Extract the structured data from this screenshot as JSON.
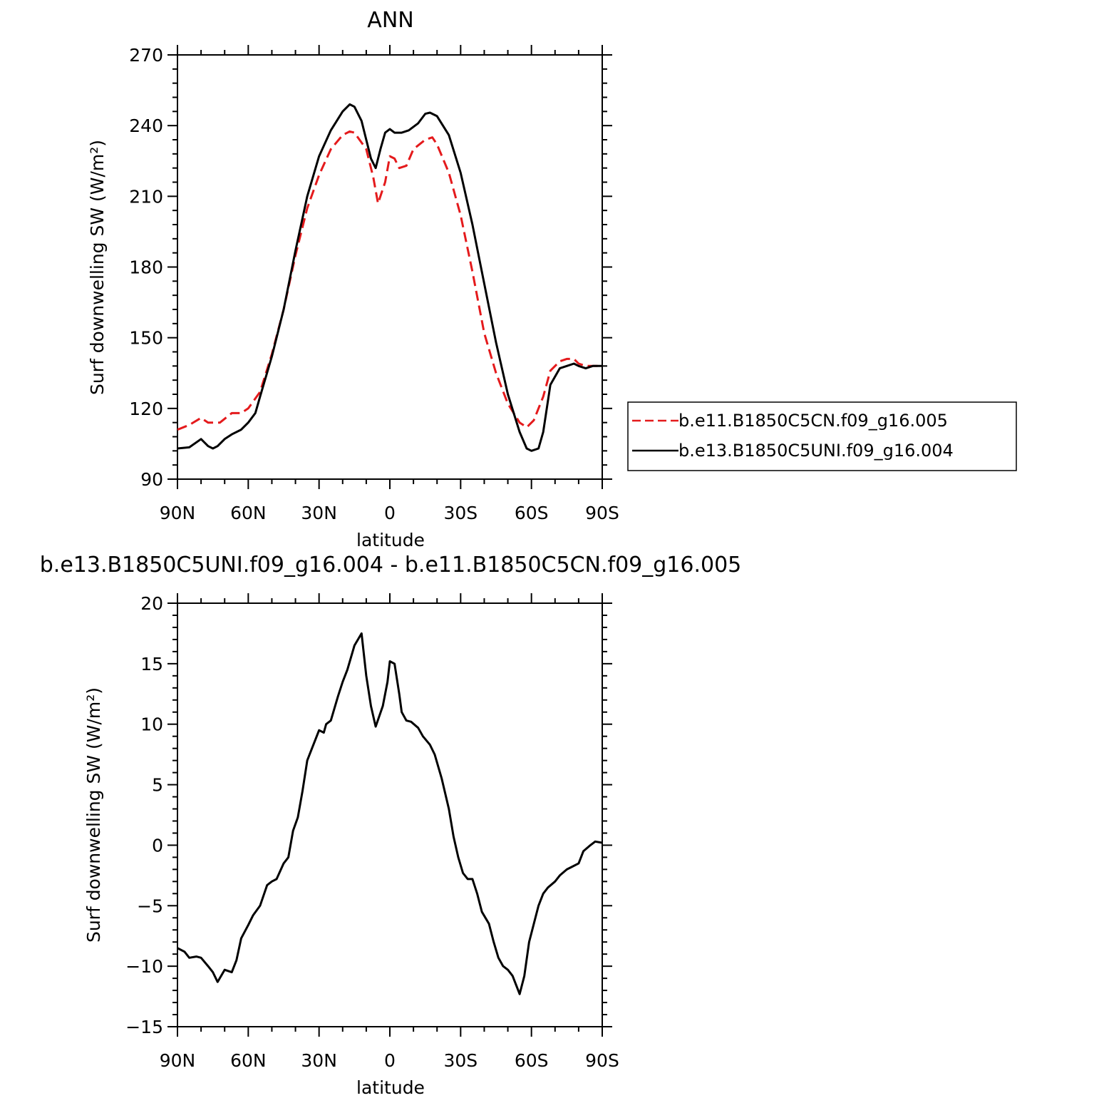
{
  "chart_data": [
    {
      "type": "line",
      "title": "ANN",
      "xlabel": "latitude",
      "ylabel": "Surf downwelling SW (W/m²)",
      "xlim": [
        90,
        -90
      ],
      "ylim": [
        90,
        270
      ],
      "x_ticks": [
        90,
        60,
        30,
        0,
        -30,
        -60,
        -90
      ],
      "x_tick_labels": [
        "90N",
        "60N",
        "30N",
        "0",
        "30S",
        "60S",
        "90S"
      ],
      "y_ticks": [
        90,
        120,
        150,
        180,
        210,
        240,
        270
      ],
      "y_tick_labels": [
        "90",
        "120",
        "150",
        "180",
        "210",
        "240",
        "270"
      ],
      "legend": "right",
      "series": [
        {
          "name": "b.e11.B1850C5CN.f09_g16.005",
          "color": "#e41a1c",
          "dash": "dashed",
          "x": [
            90,
            85,
            80,
            77,
            72,
            67,
            63,
            60,
            55,
            50,
            45,
            40,
            35,
            30,
            25,
            20,
            17,
            15,
            10,
            7,
            5,
            2,
            0,
            -2,
            -4,
            -7,
            -10,
            -15,
            -18,
            -20,
            -25,
            -30,
            -35,
            -40,
            -45,
            -50,
            -55,
            -58,
            -61,
            -65,
            -68,
            -72,
            -75,
            -78,
            -80,
            -83,
            -86,
            -90
          ],
          "y": [
            111,
            113,
            116,
            114,
            114,
            118,
            118,
            120,
            127,
            143,
            162,
            185,
            205,
            219,
            230,
            236,
            237.5,
            237,
            230,
            218,
            207,
            216,
            227,
            226,
            222,
            223,
            230,
            234,
            235,
            232,
            220,
            202,
            178,
            152,
            135,
            122,
            114,
            112,
            115,
            125,
            136,
            140,
            141,
            141,
            139,
            138,
            138,
            138
          ]
        },
        {
          "name": "b.e13.B1850C5UNI.f09_g16.004",
          "color": "#000000",
          "dash": "solid",
          "x": [
            90,
            85,
            80,
            77,
            75,
            73,
            70,
            67,
            63,
            60,
            57,
            55,
            50,
            45,
            40,
            35,
            30,
            25,
            20,
            17,
            15,
            12,
            10,
            8,
            6,
            4,
            2,
            0,
            -2,
            -5,
            -8,
            -12,
            -15,
            -17,
            -20,
            -25,
            -30,
            -35,
            -40,
            -45,
            -50,
            -55,
            -58,
            -60,
            -63,
            -65,
            -68,
            -72,
            -75,
            -78,
            -80,
            -83,
            -86,
            -90
          ],
          "y": [
            103,
            103.5,
            107,
            104,
            103,
            104,
            107,
            109,
            111,
            114,
            118,
            125,
            142,
            162,
            187,
            210,
            227,
            238,
            246,
            249,
            248,
            242,
            234,
            226,
            222,
            230,
            237,
            238.5,
            237,
            237,
            238,
            241,
            245,
            245.5,
            244,
            236,
            220,
            198,
            173,
            148,
            126,
            110,
            103,
            102,
            103,
            110,
            130,
            137,
            138,
            139,
            138,
            137,
            138,
            138
          ]
        }
      ]
    },
    {
      "type": "line",
      "title": "b.e13.B1850C5UNI.f09_g16.004 - b.e11.B1850C5CN.f09_g16.005",
      "xlabel": "latitude",
      "ylabel": "Surf downwelling SW (W/m²)",
      "xlim": [
        90,
        -90
      ],
      "ylim": [
        -15,
        20
      ],
      "x_ticks": [
        90,
        60,
        30,
        0,
        -30,
        -60,
        -90
      ],
      "x_tick_labels": [
        "90N",
        "60N",
        "30N",
        "0",
        "30S",
        "60S",
        "90S"
      ],
      "y_ticks": [
        -15,
        -10,
        -5,
        0,
        5,
        10,
        15,
        20
      ],
      "y_tick_labels": [
        "−15",
        "−10",
        "−5",
        "0",
        "5",
        "10",
        "15",
        "20"
      ],
      "series": [
        {
          "color": "#000000",
          "dash": "solid",
          "x": [
            90,
            87,
            85,
            82,
            80,
            77,
            75,
            73,
            70,
            67,
            65,
            63,
            60,
            58,
            55,
            52,
            50,
            48,
            45,
            43,
            41,
            39,
            37,
            35,
            33,
            30,
            28,
            27,
            25,
            22,
            20,
            18,
            15,
            12,
            10,
            8,
            6,
            3,
            1,
            0,
            -2,
            -4,
            -5,
            -7,
            -9,
            -12,
            -14,
            -17,
            -19,
            -22,
            -25,
            -27,
            -29,
            -31,
            -33,
            -35,
            -37,
            -39,
            -42,
            -44,
            -46,
            -48,
            -50,
            -52,
            -55,
            -57,
            -59,
            -61,
            -63,
            -65,
            -67,
            -70,
            -72,
            -75,
            -77,
            -80,
            -82,
            -85,
            -87,
            -90
          ],
          "y": [
            -8.5,
            -8.8,
            -9.3,
            -9.2,
            -9.3,
            -10,
            -10.5,
            -11.3,
            -10.3,
            -10.5,
            -9.5,
            -7.7,
            -6.6,
            -5.8,
            -5,
            -3.3,
            -3,
            -2.8,
            -1.5,
            -1,
            1.2,
            2.3,
            4.5,
            7,
            8,
            9.5,
            9.3,
            10,
            10.3,
            12.3,
            13.5,
            14.5,
            16.5,
            17.5,
            14,
            11.5,
            9.8,
            11.5,
            13.5,
            15.2,
            15,
            12.5,
            11,
            10.3,
            10.2,
            9.7,
            9,
            8.3,
            7.5,
            5.5,
            3,
            0.7,
            -1,
            -2.3,
            -2.8,
            -2.8,
            -4,
            -5.5,
            -6.5,
            -8,
            -9.3,
            -10,
            -10.3,
            -10.8,
            -12.3,
            -10.8,
            -8,
            -6.5,
            -5,
            -4,
            -3.5,
            -3,
            -2.5,
            -2,
            -1.8,
            -1.5,
            -0.5,
            0,
            0.3,
            0.2
          ]
        }
      ]
    }
  ]
}
